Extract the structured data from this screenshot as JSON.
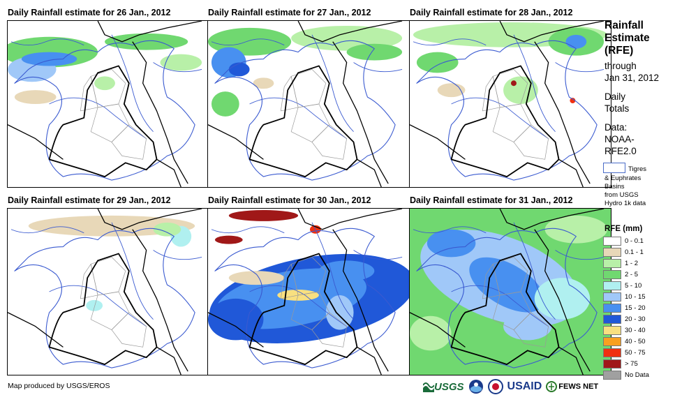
{
  "panels": [
    {
      "title": "Daily Rainfall estimate for 26 Jan., 2012"
    },
    {
      "title": "Daily Rainfall estimate for 27 Jan., 2012"
    },
    {
      "title": "Daily Rainfall estimate for 28 Jan., 2012"
    },
    {
      "title": "Daily Rainfall estimate for 29 Jan., 2012"
    },
    {
      "title": "Daily Rainfall estimate for 30 Jan., 2012"
    },
    {
      "title": "Daily Rainfall estimate for 31 Jan., 2012"
    }
  ],
  "side": {
    "title_lines": [
      "Rainfall",
      "Estimate",
      "(RFE)"
    ],
    "through": "through",
    "date": "Jan 31, 2012",
    "daily": "Daily",
    "totals": "Totals",
    "data_label": "Data:",
    "data_source_1": "NOAA-",
    "data_source_2": "RFE2.0",
    "basin_line1": "Tigres",
    "basin_line2": "& Euphrates",
    "basin_line3": "Basins",
    "basin_line4": "from USGS",
    "basin_line5": "Hydro 1k data"
  },
  "legend": {
    "title": "RFE (mm)",
    "items": [
      {
        "label": "0 - 0.1",
        "color": "#ffffff"
      },
      {
        "label": "0.1 - 1",
        "color": "#e8d8b8"
      },
      {
        "label": "1 - 2",
        "color": "#b8f0a8"
      },
      {
        "label": "2 - 5",
        "color": "#70d870"
      },
      {
        "label": "5 - 10",
        "color": "#b0f0f0"
      },
      {
        "label": "10 - 15",
        "color": "#a0c8f8"
      },
      {
        "label": "15 - 20",
        "color": "#4890f0"
      },
      {
        "label": "20 - 30",
        "color": "#2058d8"
      },
      {
        "label": "30 - 40",
        "color": "#f8e080"
      },
      {
        "label": "40 - 50",
        "color": "#f8a020"
      },
      {
        "label": "50 - 75",
        "color": "#f03010"
      },
      {
        "label": "> 75",
        "color": "#a01818"
      },
      {
        "label": "No Data",
        "color": "#a0a0a0"
      }
    ]
  },
  "credit": "Map produced by USGS/EROS",
  "logos": {
    "usgs": "USGS",
    "usaid": "USAID",
    "fews": "FEWS NET"
  }
}
